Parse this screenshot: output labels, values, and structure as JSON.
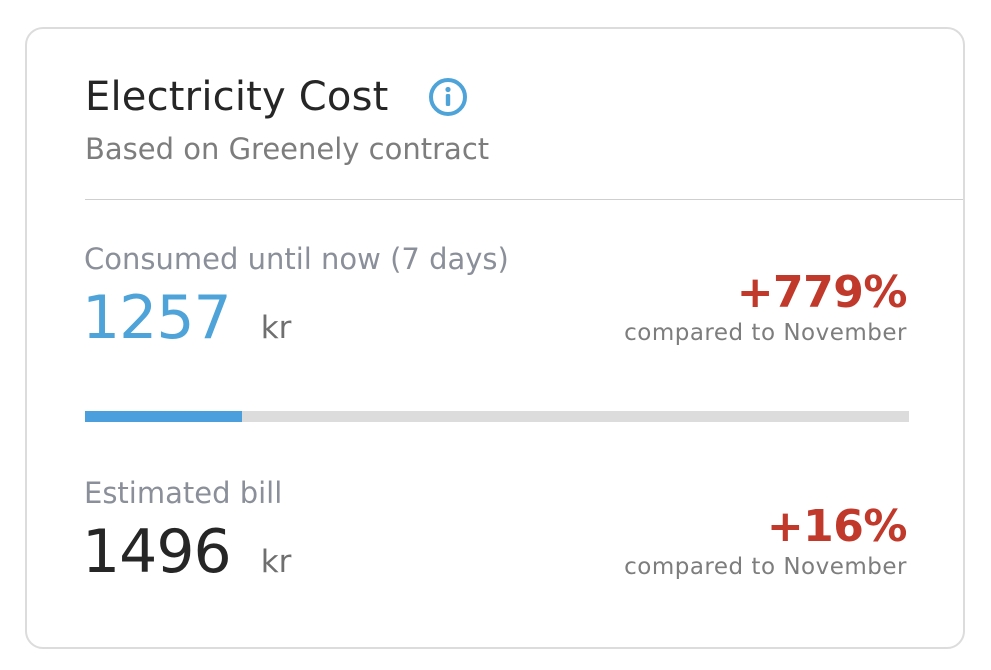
{
  "card": {
    "title": "Electricity Cost",
    "subtitle": "Based on Greenely contract",
    "info_icon": "info-icon",
    "accent_color": "#4ea3d8",
    "increase_color": "#c0392b"
  },
  "consumed": {
    "label": "Consumed until now (7 days)",
    "amount": "1257",
    "unit": "kr",
    "delta": "+779%",
    "delta_caption": "compared to November",
    "progress_fraction": 0.19
  },
  "estimated": {
    "label": "Estimated bill",
    "amount": "1496",
    "unit": "kr",
    "delta": "+16%",
    "delta_caption": "compared to November"
  }
}
